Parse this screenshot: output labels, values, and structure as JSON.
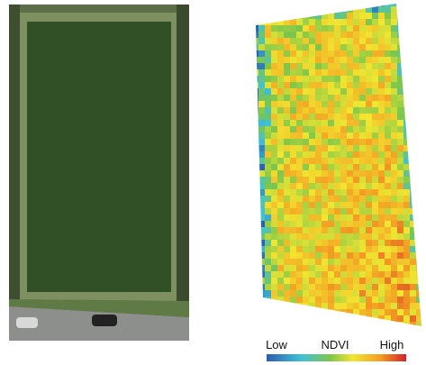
{
  "colorbar": {
    "low": "Low",
    "title": "NDVI",
    "high": "High"
  }
}
